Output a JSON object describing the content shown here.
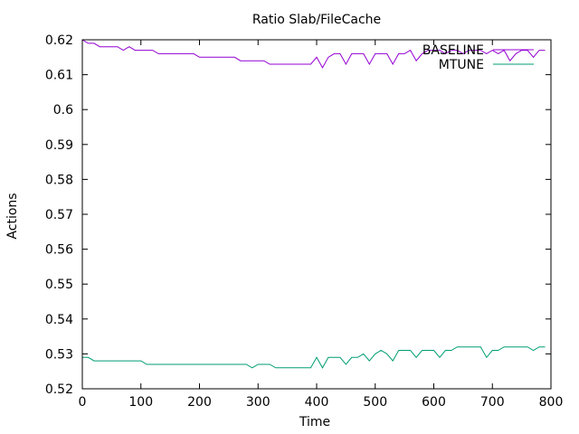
{
  "chart_data": {
    "type": "line",
    "title": "Ratio Slab/FileCache",
    "xlabel": "Time",
    "ylabel": "Actions",
    "xlim": [
      0,
      800
    ],
    "ylim": [
      0.52,
      0.62
    ],
    "xticks": [
      0,
      100,
      200,
      300,
      400,
      500,
      600,
      700,
      800
    ],
    "xtick_labels": [
      "0",
      "100",
      "200",
      "300",
      "400",
      "500",
      "600",
      "700",
      "800"
    ],
    "yticks": [
      0.52,
      0.53,
      0.54,
      0.55,
      0.56,
      0.57,
      0.58,
      0.59,
      0.6,
      0.61,
      0.62
    ],
    "ytick_labels": [
      "0.52",
      "0.53",
      "0.54",
      "0.55",
      "0.56",
      "0.57",
      "0.58",
      "0.59",
      "0.6",
      "0.61",
      "0.62"
    ],
    "grid": false,
    "legend": "top-right",
    "series": [
      {
        "name": "BASELINE",
        "color": "#9400d3",
        "x": [
          0,
          10,
          20,
          30,
          40,
          50,
          60,
          70,
          80,
          90,
          100,
          110,
          120,
          130,
          140,
          150,
          160,
          170,
          180,
          190,
          200,
          210,
          220,
          230,
          240,
          250,
          260,
          270,
          280,
          290,
          300,
          310,
          320,
          330,
          340,
          350,
          360,
          370,
          380,
          390,
          400,
          410,
          420,
          430,
          440,
          450,
          460,
          470,
          480,
          490,
          500,
          510,
          520,
          530,
          540,
          550,
          560,
          570,
          580,
          590,
          600,
          610,
          620,
          630,
          640,
          650,
          660,
          670,
          680,
          690,
          700,
          710,
          720,
          730,
          740,
          750,
          760,
          770,
          780,
          790
        ],
        "y": [
          0.62,
          0.619,
          0.619,
          0.618,
          0.618,
          0.618,
          0.618,
          0.617,
          0.618,
          0.617,
          0.617,
          0.617,
          0.617,
          0.616,
          0.616,
          0.616,
          0.616,
          0.616,
          0.616,
          0.616,
          0.615,
          0.615,
          0.615,
          0.615,
          0.615,
          0.615,
          0.615,
          0.614,
          0.614,
          0.614,
          0.614,
          0.614,
          0.613,
          0.613,
          0.613,
          0.613,
          0.613,
          0.613,
          0.613,
          0.613,
          0.615,
          0.612,
          0.615,
          0.616,
          0.616,
          0.613,
          0.616,
          0.616,
          0.616,
          0.613,
          0.616,
          0.616,
          0.616,
          0.613,
          0.616,
          0.616,
          0.617,
          0.614,
          0.616,
          0.617,
          0.617,
          0.617,
          0.616,
          0.617,
          0.617,
          0.616,
          0.617,
          0.617,
          0.617,
          0.616,
          0.617,
          0.616,
          0.617,
          0.614,
          0.616,
          0.617,
          0.617,
          0.615,
          0.617,
          0.617
        ]
      },
      {
        "name": "MTUNE",
        "color": "#009e73",
        "x": [
          0,
          10,
          20,
          30,
          40,
          50,
          60,
          70,
          80,
          90,
          100,
          110,
          120,
          130,
          140,
          150,
          160,
          170,
          180,
          190,
          200,
          210,
          220,
          230,
          240,
          250,
          260,
          270,
          280,
          290,
          300,
          310,
          320,
          330,
          340,
          350,
          360,
          370,
          380,
          390,
          400,
          410,
          420,
          430,
          440,
          450,
          460,
          470,
          480,
          490,
          500,
          510,
          520,
          530,
          540,
          550,
          560,
          570,
          580,
          590,
          600,
          610,
          620,
          630,
          640,
          650,
          660,
          670,
          680,
          690,
          700,
          710,
          720,
          730,
          740,
          750,
          760,
          770,
          780,
          790
        ],
        "y": [
          0.529,
          0.529,
          0.528,
          0.528,
          0.528,
          0.528,
          0.528,
          0.528,
          0.528,
          0.528,
          0.528,
          0.527,
          0.527,
          0.527,
          0.527,
          0.527,
          0.527,
          0.527,
          0.527,
          0.527,
          0.527,
          0.527,
          0.527,
          0.527,
          0.527,
          0.527,
          0.527,
          0.527,
          0.527,
          0.526,
          0.527,
          0.527,
          0.527,
          0.526,
          0.526,
          0.526,
          0.526,
          0.526,
          0.526,
          0.526,
          0.529,
          0.526,
          0.529,
          0.529,
          0.529,
          0.527,
          0.529,
          0.529,
          0.53,
          0.528,
          0.53,
          0.531,
          0.53,
          0.528,
          0.531,
          0.531,
          0.531,
          0.529,
          0.531,
          0.531,
          0.531,
          0.529,
          0.531,
          0.531,
          0.532,
          0.532,
          0.532,
          0.532,
          0.532,
          0.529,
          0.531,
          0.531,
          0.532,
          0.532,
          0.532,
          0.532,
          0.532,
          0.531,
          0.532,
          0.532
        ]
      }
    ]
  }
}
